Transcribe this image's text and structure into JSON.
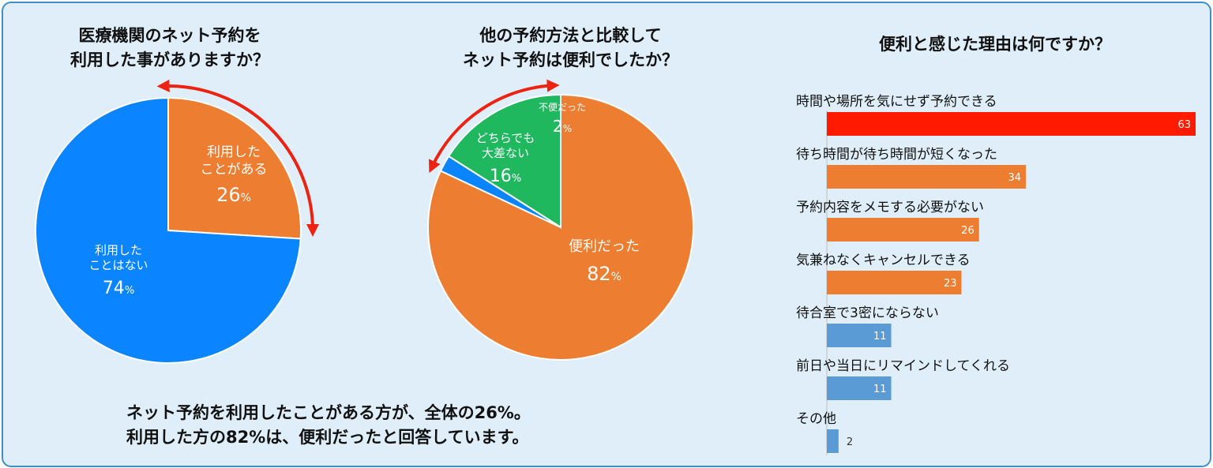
{
  "colors": {
    "orange": "#ed7d31",
    "blue": "#0a84ff",
    "green": "#1fb85f",
    "red": "#ff1a00",
    "steel": "#5b9bd5",
    "arrow": "#ee2211"
  },
  "chart_data": [
    {
      "type": "pie",
      "title_lines": [
        "医療機関のネット予約を",
        "利用した事がありますか？"
      ],
      "slices": [
        {
          "label_lines": [
            "利用した",
            "ことがある"
          ],
          "value": 26,
          "unit": "%",
          "color": "#ed7d31"
        },
        {
          "label_lines": [
            "利用した",
            "ことはない"
          ],
          "value": 74,
          "unit": "%",
          "color": "#0a84ff"
        }
      ]
    },
    {
      "type": "pie",
      "title_lines": [
        "他の予約方法と比較して",
        "ネット予約は便利でしたか？"
      ],
      "slices": [
        {
          "label_lines": [
            "便利だった"
          ],
          "value": 82,
          "unit": "%",
          "color": "#ed7d31"
        },
        {
          "label_lines": [
            "どちらでも",
            "大差ない"
          ],
          "value": 16,
          "unit": "%",
          "color": "#1fb85f"
        },
        {
          "label_lines": [
            "不便だった"
          ],
          "value": 2,
          "unit": "%",
          "color": "#0a84ff"
        }
      ]
    },
    {
      "type": "bar",
      "orientation": "horizontal",
      "title": "便利と感じた理由は何ですか？",
      "categories": [
        "時間や場所を気にせず予約できる",
        "待ち時間が待ち時間が短くなった",
        "予約内容をメモする必要がない",
        "気兼ねなくキャンセルできる",
        "待合室で3密にならない",
        "前日や当日にリマインドしてくれる",
        "その他"
      ],
      "values": [
        63,
        34,
        26,
        23,
        11,
        11,
        2
      ],
      "bar_colors": [
        "#ff1a00",
        "#ed7d31",
        "#ed7d31",
        "#ed7d31",
        "#5b9bd5",
        "#5b9bd5",
        "#5b9bd5"
      ],
      "xlim": [
        0,
        63
      ]
    }
  ],
  "summary_lines": [
    "ネット予約を利用したことがある方が、全体の26%。",
    "利用した方の82%は、便利だったと回答しています。"
  ]
}
